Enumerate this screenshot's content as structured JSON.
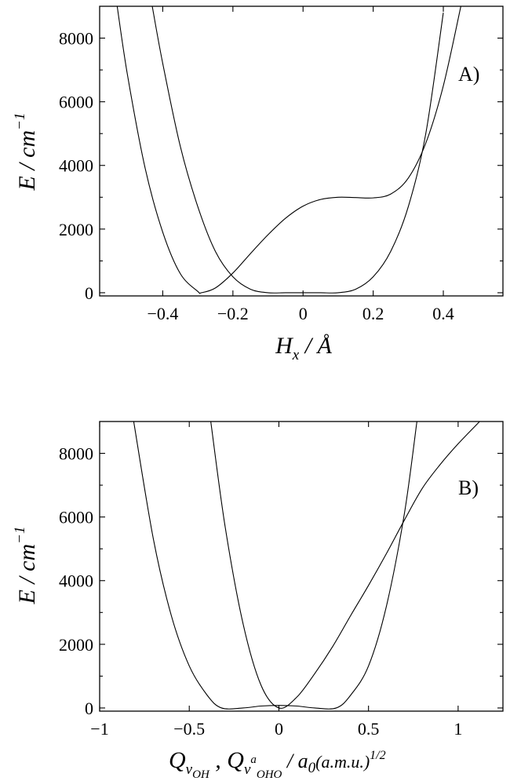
{
  "chart_data": [
    {
      "type": "line",
      "panel_label": "A)",
      "xlabel": "H_x / Å",
      "xlabel_main": "H",
      "xlabel_sub": "x",
      "xlabel_unit": " / Å",
      "ylabel": "E / cm^-1",
      "ylabel_main": "E / cm",
      "ylabel_sup": "−1",
      "xlim": [
        -0.58,
        0.57
      ],
      "ylim": [
        -100,
        9000
      ],
      "xticks": [
        -0.4,
        -0.2,
        0,
        0.2,
        0.4
      ],
      "xtick_labels": [
        "−0.4",
        "−0.2",
        "0",
        "0.2",
        "0.4"
      ],
      "yticks": [
        0,
        2000,
        4000,
        6000,
        8000
      ],
      "ytick_labels": [
        "0",
        "2000",
        "4000",
        "6000",
        "8000"
      ],
      "series": [
        {
          "x": [
            -0.53,
            -0.5,
            -0.45,
            -0.4,
            -0.35,
            -0.3,
            -0.29,
            -0.25,
            -0.2,
            -0.15,
            -0.1,
            -0.05,
            0,
            0.05,
            0.1,
            0.15,
            0.2,
            0.25,
            0.3,
            0.35,
            0.4,
            0.45
          ],
          "y": [
            9000,
            6800,
            3900,
            1900,
            600,
            40,
            0,
            150,
            620,
            1230,
            1820,
            2340,
            2720,
            2930,
            3000,
            2990,
            2980,
            3100,
            3600,
            4700,
            6500,
            9000
          ]
        },
        {
          "x": [
            -0.43,
            -0.4,
            -0.35,
            -0.3,
            -0.25,
            -0.2,
            -0.15,
            -0.1,
            -0.05,
            0,
            0.05,
            0.1,
            0.15,
            0.2,
            0.25,
            0.3,
            0.35,
            0.4
          ],
          "y": [
            9000,
            7200,
            4600,
            2700,
            1300,
            500,
            110,
            0,
            0,
            0,
            0,
            0,
            110,
            500,
            1300,
            2700,
            5000,
            8800
          ]
        }
      ]
    },
    {
      "type": "line",
      "panel_label": "B)",
      "xlabel": "Q_νOH , Q_ν^a OHO / a0 (a.m.u.)^1/2",
      "xlabel_q1": "Q",
      "xlabel_q1_sub": "ν",
      "xlabel_q1_subsub": "OH",
      "xlabel_sep": " , ",
      "xlabel_q2": "Q",
      "xlabel_q2_sub": "ν",
      "xlabel_q2_sup": "a",
      "xlabel_q2_subsub": "OHO",
      "xlabel_unit": " / a",
      "xlabel_unit_sub": "0",
      "xlabel_unit_rest": "(a.m.u.)",
      "xlabel_unit_sup": "1/2",
      "ylabel": "E / cm^-1",
      "ylabel_main": "E / cm",
      "ylabel_sup": "−1",
      "xlim": [
        -1.0,
        1.25
      ],
      "ylim": [
        -100,
        9000
      ],
      "xticks": [
        -1,
        -0.5,
        0,
        0.5,
        1
      ],
      "xtick_labels": [
        "−1",
        "−0.5",
        "0",
        "0.5",
        "1"
      ],
      "yticks": [
        0,
        2000,
        4000,
        6000,
        8000
      ],
      "ytick_labels": [
        "0",
        "2000",
        "4000",
        "6000",
        "8000"
      ],
      "series": [
        {
          "x": [
            -0.81,
            -0.7,
            -0.6,
            -0.5,
            -0.4,
            -0.32,
            -0.2,
            -0.1,
            0,
            0.1,
            0.2,
            0.32,
            0.4,
            0.5,
            0.6,
            0.7,
            0.77
          ],
          "y": [
            9000,
            5300,
            2900,
            1320,
            400,
            0,
            0,
            60,
            80,
            60,
            0,
            0,
            400,
            1320,
            3200,
            6100,
            9000
          ]
        },
        {
          "x": [
            -0.38,
            -0.3,
            -0.2,
            -0.1,
            0,
            0.1,
            0.2,
            0.3,
            0.4,
            0.5,
            0.6,
            0.7,
            0.8,
            0.9,
            1.0,
            1.12
          ],
          "y": [
            9000,
            5700,
            2650,
            720,
            0,
            340,
            1080,
            1930,
            2900,
            3850,
            4850,
            5900,
            6900,
            7650,
            8300,
            9000
          ]
        }
      ]
    }
  ]
}
